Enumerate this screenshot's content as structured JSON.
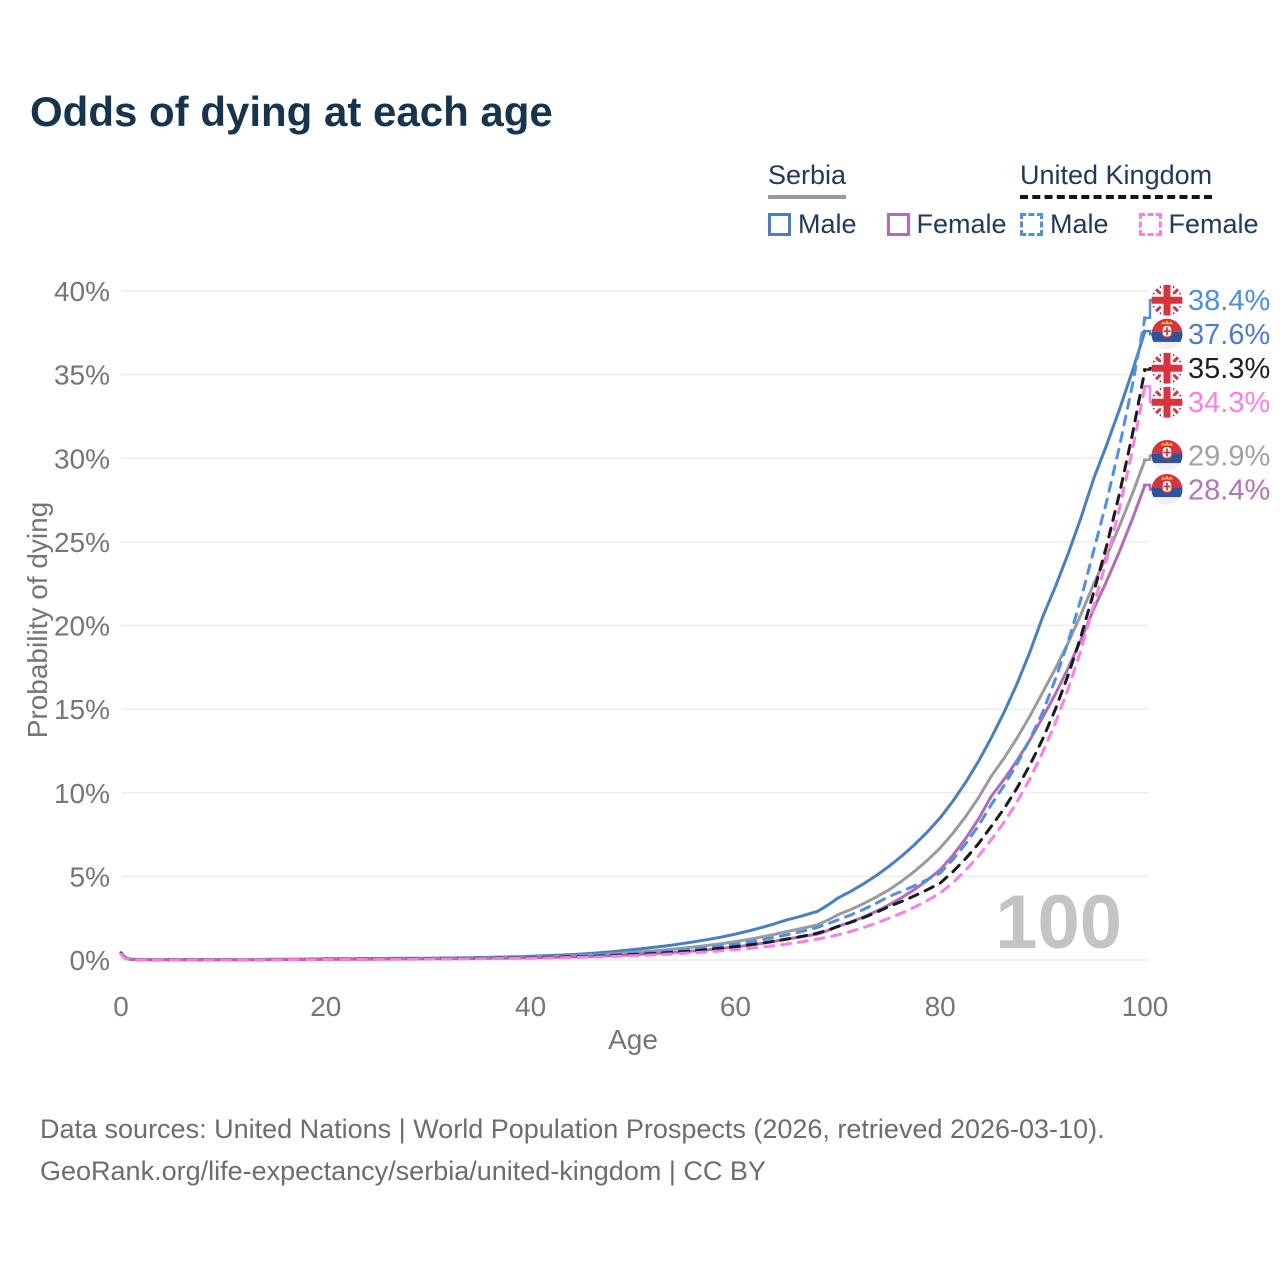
{
  "title": "Odds of dying at each age",
  "legend": {
    "groups": [
      {
        "country": "Serbia",
        "line_style": "solid",
        "underline_color": "#9a9a9a",
        "items": [
          {
            "label": "Male",
            "color": "#4a7ec4"
          },
          {
            "label": "Female",
            "color": "#b06cb8"
          }
        ]
      },
      {
        "country": "United Kingdom",
        "line_style": "dashed",
        "underline_color": "#141414",
        "items": [
          {
            "label": "Male",
            "color": "#4e90e8"
          },
          {
            "label": "Female",
            "color": "#ff7ee3"
          }
        ]
      }
    ]
  },
  "chart_data": {
    "type": "line",
    "title": "Odds of dying at each age",
    "xlabel": "Age",
    "ylabel": "Probability of dying",
    "xlim": [
      0,
      100
    ],
    "ylim": [
      0,
      40
    ],
    "xticks": [
      0,
      20,
      40,
      60,
      80,
      100
    ],
    "yticks": [
      0,
      5,
      10,
      15,
      20,
      25,
      30,
      35,
      40
    ],
    "ytick_labels": [
      "0%",
      "5%",
      "10%",
      "15%",
      "20%",
      "25%",
      "30%",
      "35%",
      "40%"
    ],
    "grid": "horizontal-only",
    "watermark": "100",
    "ages": [
      0,
      1,
      5,
      10,
      15,
      20,
      25,
      30,
      35,
      40,
      45,
      50,
      55,
      60,
      65,
      68,
      70,
      75,
      80,
      85,
      90,
      95,
      100
    ],
    "series": [
      {
        "name": "Serbia Male",
        "country": "Serbia",
        "sex": "male",
        "color": "#4a7ec4",
        "dash": false,
        "values": [
          0.45,
          0.04,
          0.02,
          0.02,
          0.04,
          0.07,
          0.09,
          0.11,
          0.15,
          0.22,
          0.36,
          0.62,
          1.0,
          1.55,
          2.4,
          2.9,
          3.7,
          5.6,
          8.5,
          13.3,
          20.5,
          28.8,
          37.6
        ]
      },
      {
        "name": "Serbia Both sexes",
        "country": "Serbia",
        "sex": "both",
        "color": "#9b9b9b",
        "dash": false,
        "values": [
          0.42,
          0.035,
          0.015,
          0.015,
          0.03,
          0.05,
          0.07,
          0.09,
          0.12,
          0.17,
          0.27,
          0.45,
          0.72,
          1.1,
          1.7,
          2.1,
          2.7,
          4.2,
          6.7,
          11.0,
          16.0,
          22.5,
          29.9
        ]
      },
      {
        "name": "Serbia Female",
        "country": "Serbia",
        "sex": "female",
        "color": "#b06cb8",
        "dash": false,
        "values": [
          0.38,
          0.03,
          0.012,
          0.012,
          0.025,
          0.04,
          0.05,
          0.07,
          0.09,
          0.13,
          0.2,
          0.32,
          0.5,
          0.78,
          1.25,
          1.55,
          2.0,
          3.3,
          5.4,
          9.8,
          14.5,
          21.0,
          28.4
        ]
      },
      {
        "name": "United Kingdom Male",
        "country": "United Kingdom",
        "sex": "male",
        "color": "#4e90e8",
        "dash": true,
        "values": [
          0.4,
          0.025,
          0.01,
          0.01,
          0.025,
          0.05,
          0.065,
          0.08,
          0.11,
          0.16,
          0.24,
          0.38,
          0.6,
          0.95,
          1.5,
          1.95,
          2.4,
          3.8,
          5.2,
          9.3,
          14.8,
          24.5,
          38.4
        ]
      },
      {
        "name": "United Kingdom Both sexes",
        "country": "United Kingdom",
        "sex": "both",
        "color": "#1b1b1b",
        "dash": true,
        "values": [
          0.38,
          0.022,
          0.009,
          0.009,
          0.022,
          0.042,
          0.055,
          0.07,
          0.095,
          0.14,
          0.2,
          0.32,
          0.5,
          0.8,
          1.25,
          1.6,
          2.0,
          3.2,
          4.6,
          8.0,
          13.2,
          22.0,
          35.3
        ]
      },
      {
        "name": "United Kingdom Female",
        "country": "United Kingdom",
        "sex": "female",
        "color": "#ff7ee3",
        "dash": true,
        "values": [
          0.35,
          0.02,
          0.008,
          0.008,
          0.018,
          0.03,
          0.04,
          0.055,
          0.08,
          0.11,
          0.16,
          0.26,
          0.4,
          0.62,
          0.95,
          1.25,
          1.5,
          2.5,
          4.0,
          7.2,
          12.4,
          21.2,
          34.3
        ]
      }
    ],
    "end_labels": [
      {
        "series": "United Kingdom Male",
        "flag": "uk",
        "value": 38.4,
        "value_label": "38.4%",
        "text_color": "#4a8fe0",
        "line_color": "#4e90e8"
      },
      {
        "series": "Serbia Male",
        "flag": "serbia",
        "value": 37.6,
        "value_label": "37.6%",
        "text_color": "#4a7ec8",
        "line_color": "#4a7ec4"
      },
      {
        "series": "United Kingdom Both sexes",
        "flag": "uk",
        "value": 35.3,
        "value_label": "35.3%",
        "text_color": "#1f1f1f",
        "line_color": "#1b1b1b"
      },
      {
        "series": "United Kingdom Female",
        "flag": "uk",
        "value": 34.3,
        "value_label": "34.3%",
        "text_color": "#ff7ee3",
        "line_color": "#ff7ee3"
      },
      {
        "series": "Serbia Both sexes",
        "flag": "serbia",
        "value": 29.9,
        "value_label": "29.9%",
        "text_color": "#a2a2a2",
        "line_color": "#9b9b9b"
      },
      {
        "series": "Serbia Female",
        "flag": "serbia",
        "value": 28.4,
        "value_label": "28.4%",
        "text_color": "#b473bd",
        "line_color": "#b06cb8"
      }
    ]
  },
  "footer": {
    "line1": "Data sources: United Nations | World Population Prospects (2026, retrieved 2026-03-10).",
    "line2": "GeoRank.org/life-expectancy/serbia/united-kingdom | CC BY"
  }
}
